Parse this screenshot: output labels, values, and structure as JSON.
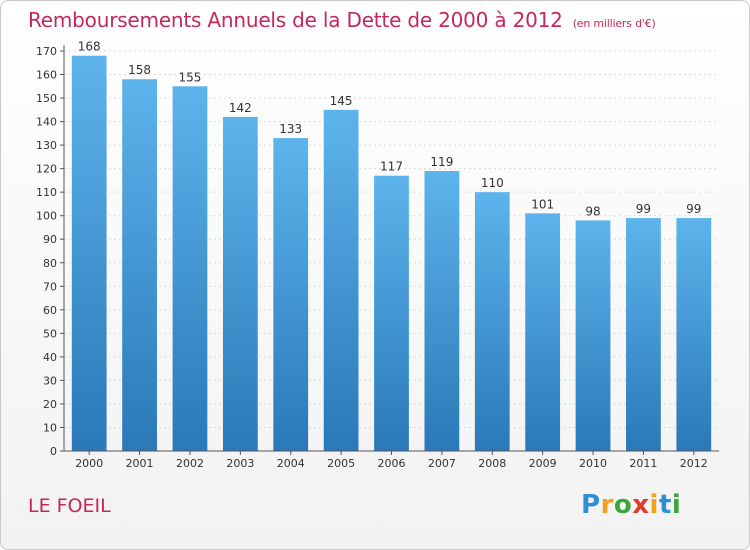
{
  "title": "Remboursements Annuels de la Dette de 2000 à 2012",
  "subtitle": "(en milliers d'€)",
  "commune": "LE FOEIL",
  "brand": {
    "letters": [
      "P",
      "r",
      "o",
      "x",
      "i",
      "t",
      "i"
    ],
    "colors": [
      "#2f8fd6",
      "#f0a21a",
      "#3ca63c",
      "#e23a2a",
      "#f0a21a",
      "#2f8fd6",
      "#3ca63c"
    ]
  },
  "colors": {
    "bar_top": "#5db4ec",
    "bar_bottom": "#2a78b8",
    "text": "#333333",
    "grid": "#d9d9d9"
  },
  "chart_data": {
    "type": "bar",
    "categories": [
      "2000",
      "2001",
      "2002",
      "2003",
      "2004",
      "2005",
      "2006",
      "2007",
      "2008",
      "2009",
      "2010",
      "2011",
      "2012"
    ],
    "values": [
      168,
      158,
      155,
      142,
      133,
      145,
      117,
      119,
      110,
      101,
      98,
      99,
      99
    ],
    "data_labels": [
      "168",
      "158",
      "155",
      "142",
      "133",
      "145",
      "117",
      "119",
      "110",
      "101",
      "98",
      "99",
      "99"
    ],
    "ylim": [
      0,
      170
    ],
    "ytick_step": 10,
    "yticks": [
      "0",
      "10",
      "20",
      "30",
      "40",
      "50",
      "60",
      "70",
      "80",
      "90",
      "100",
      "110",
      "120",
      "130",
      "140",
      "150",
      "160",
      "170"
    ],
    "grid": true,
    "legend": false,
    "xlabel": "",
    "ylabel": ""
  }
}
